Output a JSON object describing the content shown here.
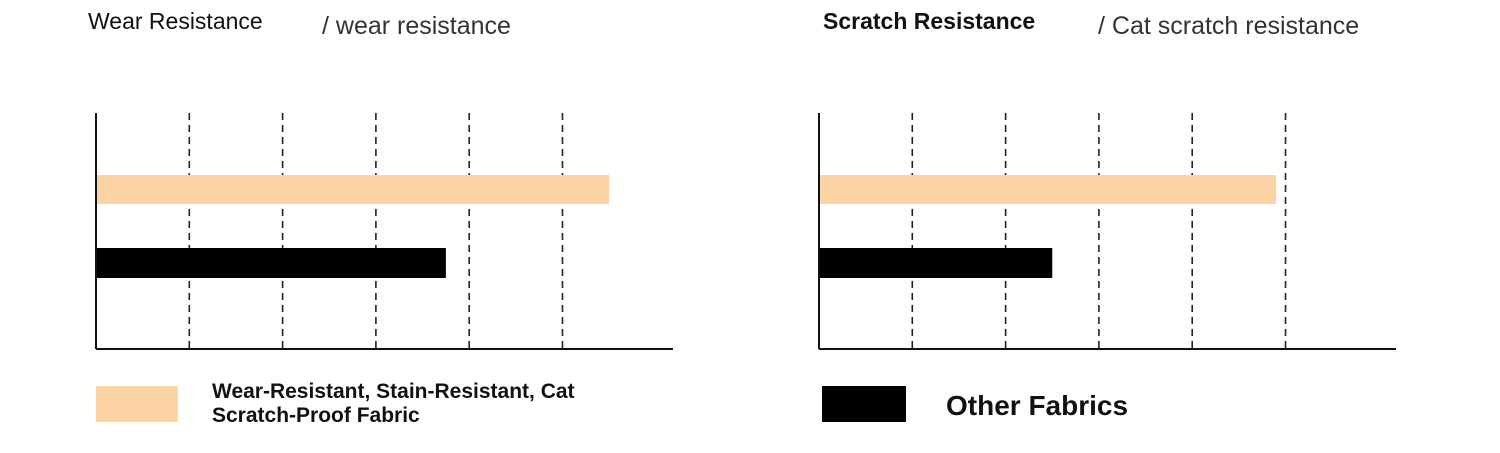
{
  "chart_data": [
    {
      "type": "bar",
      "orientation": "horizontal",
      "title": "Wear Resistance",
      "subtitle": "/ wear resistance",
      "grid": true,
      "xlim": [
        0,
        6
      ],
      "series": [
        {
          "color": "#fbd3a4",
          "value": 5.5
        },
        {
          "color": "#000000",
          "value": 3.75
        }
      ]
    },
    {
      "type": "bar",
      "orientation": "horizontal",
      "title": "Scratch Resistance",
      "subtitle": "/ Cat scratch resistance",
      "grid": true,
      "xlim": [
        0,
        6
      ],
      "series": [
        {
          "color": "#fbd3a4",
          "value": 4.9
        },
        {
          "color": "#000000",
          "value": 2.5
        }
      ]
    }
  ],
  "legend": [
    {
      "label_line1": "Wear-Resistant, Stain-Resistant, Cat",
      "label_line2": "Scratch-Proof Fabric",
      "color": "#fbd3a4"
    },
    {
      "label": "Other Fabrics",
      "color": "#000000"
    }
  ]
}
